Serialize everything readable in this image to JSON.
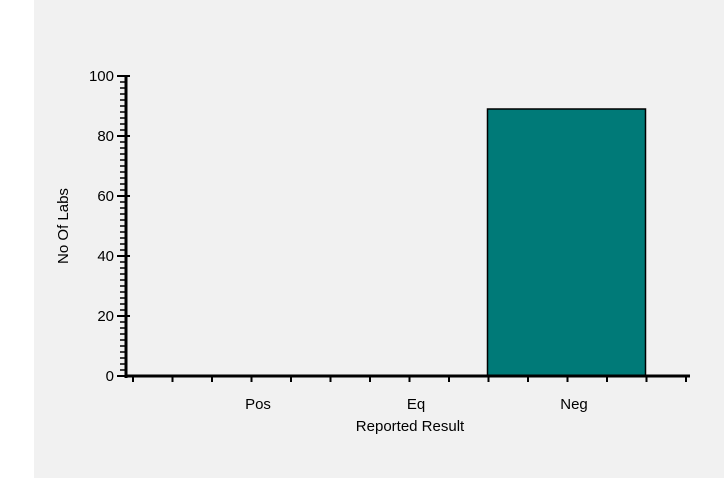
{
  "chart_data": {
    "type": "bar",
    "categories": [
      "Pos",
      "Eq",
      "Neg"
    ],
    "values": [
      0,
      0,
      89
    ],
    "xlabel": "Reported Result",
    "ylabel": "No Of Labs",
    "ylim": [
      0,
      100
    ],
    "yticks": [
      0,
      20,
      40,
      60,
      80,
      100
    ],
    "bar_color": "#007a78",
    "bar_edge_color": "#000000",
    "axis_color": "#000000",
    "background_color": "#f1f1f1",
    "grid": false,
    "legend": "none"
  }
}
